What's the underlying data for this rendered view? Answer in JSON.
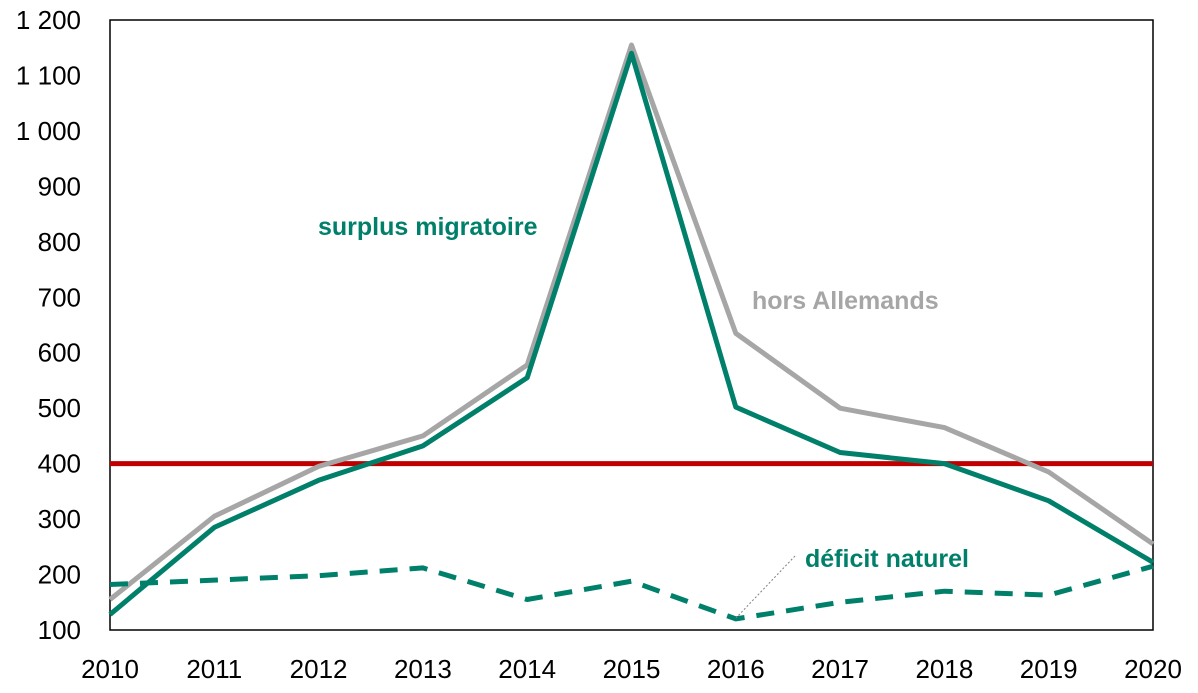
{
  "chart_data": {
    "type": "line",
    "title": "",
    "xlabel": "",
    "ylabel": "",
    "x": [
      "2010",
      "2011",
      "2012",
      "2013",
      "2014",
      "2015",
      "2016",
      "2017",
      "2018",
      "2019",
      "2020"
    ],
    "xlim": [
      2010,
      2020
    ],
    "ylim": [
      100,
      1200
    ],
    "yticks": [
      100,
      200,
      300,
      400,
      500,
      600,
      700,
      800,
      900,
      1000,
      1100,
      1200
    ],
    "ytick_labels": [
      "100",
      "200",
      "300",
      "400",
      "500",
      "600",
      "700",
      "800",
      "900",
      "1 000",
      "1 100",
      "1 200"
    ],
    "grid": false,
    "series": [
      {
        "name": "hors Allemands",
        "color": "#a6a6a6",
        "style": "solid",
        "values": [
          155,
          305,
          395,
          450,
          578,
          1155,
          635,
          500,
          465,
          385,
          255
        ]
      },
      {
        "name": "surplus migratoire",
        "color": "#00806a",
        "style": "solid",
        "values": [
          128,
          285,
          370,
          432,
          555,
          1140,
          502,
          420,
          400,
          333,
          222
        ]
      },
      {
        "name": "déficit naturel",
        "color": "#00806a",
        "style": "dashed",
        "values": [
          182,
          190,
          198,
          212,
          155,
          188,
          120,
          150,
          170,
          163,
          215
        ]
      }
    ],
    "reference_line": {
      "value": 400,
      "color": "#c00000"
    },
    "annotations": {
      "surplus": {
        "text": "surplus migratoire",
        "color": "#00806a"
      },
      "hors": {
        "text": "hors Allemands",
        "color": "#a6a6a6"
      },
      "deficit": {
        "text": "déficit naturel",
        "color": "#00806a"
      }
    }
  }
}
